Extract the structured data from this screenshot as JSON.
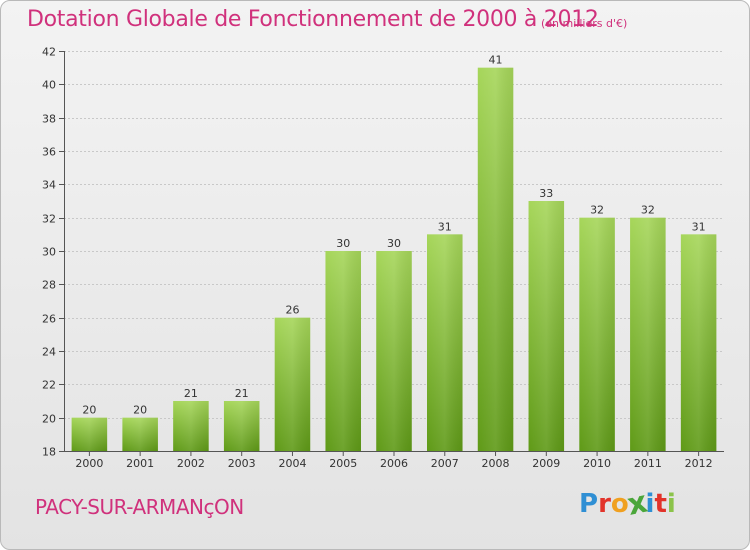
{
  "header": {
    "title": "Dotation Globale de Fonctionnement de 2000 à 2012",
    "unit": "(en milliers d'€)"
  },
  "footer": {
    "commune": "PACY-SUR-ARMANçON",
    "brand": "Proxiti",
    "brand_colors": [
      "#2f8fd4",
      "#e2332a",
      "#f0a020",
      "#4aa63a",
      "#2f8fd4",
      "#e2332a",
      "#8bc34a"
    ]
  },
  "colors": {
    "accent": "#d0317c",
    "bar_top": "#a6d65a",
    "bar_bottom": "#5f9a17",
    "grid": "#c8c8c8"
  },
  "chart_data": {
    "type": "bar",
    "title": "Dotation Globale de Fonctionnement de 2000 à 2012",
    "subtitle": "(en milliers d'€)",
    "categories": [
      "2000",
      "2001",
      "2002",
      "2003",
      "2004",
      "2005",
      "2006",
      "2007",
      "2008",
      "2009",
      "2010",
      "2011",
      "2012"
    ],
    "values": [
      20,
      20,
      21,
      21,
      26,
      30,
      30,
      31,
      41,
      33,
      32,
      32,
      31
    ],
    "data_labels": [
      "20",
      "20",
      "21",
      "21",
      "26",
      "30",
      "30",
      "31",
      "41",
      "33",
      "32",
      "32",
      "31"
    ],
    "ylim": [
      18,
      42
    ],
    "y_ticks": [
      18,
      20,
      22,
      24,
      26,
      28,
      30,
      32,
      34,
      36,
      38,
      40,
      42
    ],
    "xlabel": "",
    "ylabel": "",
    "grid": true,
    "legend": "none"
  }
}
